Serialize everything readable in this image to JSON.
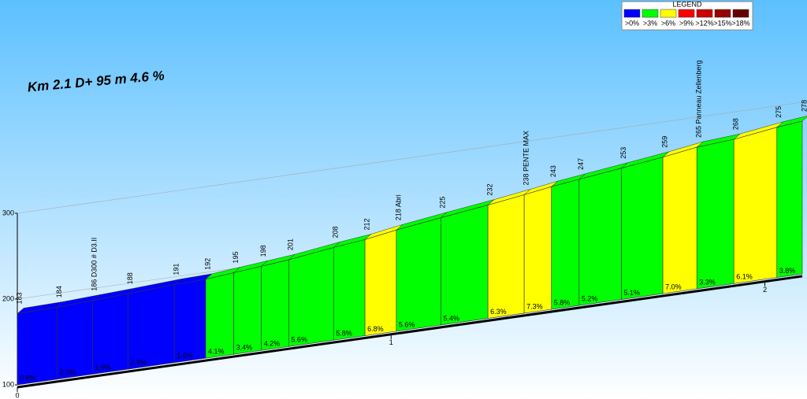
{
  "chart_data": {
    "type": "profile",
    "title": "Km 2.1 D+ 95 m 4.6 %",
    "x": [
      0,
      0.107,
      0.201,
      0.296,
      0.42,
      0.504,
      0.579,
      0.653,
      0.726,
      0.846,
      0.93,
      1.014,
      1.133,
      1.259,
      1.356,
      1.429,
      1.503,
      1.616,
      1.727,
      1.818,
      1.917,
      2.032,
      2.1
    ],
    "values": [
      183,
      184,
      186,
      188,
      191,
      192,
      195,
      198,
      201,
      208,
      212,
      218,
      225,
      232,
      238,
      243,
      247,
      253,
      259,
      265,
      268,
      275,
      278
    ],
    "value_labels": [
      "183",
      "184",
      "186 D300 # D3.II",
      "188",
      "191",
      "192",
      "195",
      "198",
      "201",
      "208",
      "212",
      "218 Abri",
      "225",
      "232",
      "238 PENTE MAX",
      "243",
      "247",
      "253",
      "259",
      "265 Panneau Zellenberg",
      "268",
      "275",
      "278"
    ],
    "segment_values": [
      0.8,
      2.0,
      1.9,
      2.9,
      1.6,
      4.1,
      3.4,
      4.2,
      5.6,
      5.8,
      6.8,
      5.6,
      5.4,
      6.3,
      7.3,
      5.8,
      5.2,
      5.1,
      7.0,
      3.3,
      6.1,
      3.8
    ],
    "segment_value_labels": [
      "0.8%",
      "2.0%",
      "1.9%",
      "2.9%",
      "1.6%",
      "4.1%",
      "3.4%",
      "4.2%",
      "5.6%",
      "5.8%",
      "6.8%",
      "5.6%",
      "5.4%",
      "6.3%",
      "7.3%",
      "5.8%",
      "5.2%",
      "5.1%",
      "7.0%",
      "3.3%",
      "6.1%",
      "3.8%"
    ],
    "xlim": [
      0,
      2.1
    ],
    "xticks": [
      0,
      1,
      2
    ],
    "ylim": [
      100,
      300
    ],
    "yticks": [
      100,
      200,
      300
    ],
    "grid": true,
    "legend": {
      "title": "LEGEND",
      "items": [
        {
          "label": ">0%",
          "threshold": 0,
          "color": "#0000ff"
        },
        {
          "label": ">3%",
          "threshold": 3,
          "color": "#00ff00"
        },
        {
          "label": ">6%",
          "threshold": 6,
          "color": "#ffff00"
        },
        {
          "label": ">9%",
          "threshold": 9,
          "color": "#ff0000"
        },
        {
          "label": ">12%",
          "threshold": 12,
          "color": "#cc0000"
        },
        {
          "label": ">15%",
          "threshold": 15,
          "color": "#990000"
        },
        {
          "label": ">18%",
          "threshold": 18,
          "color": "#660000"
        }
      ]
    }
  }
}
